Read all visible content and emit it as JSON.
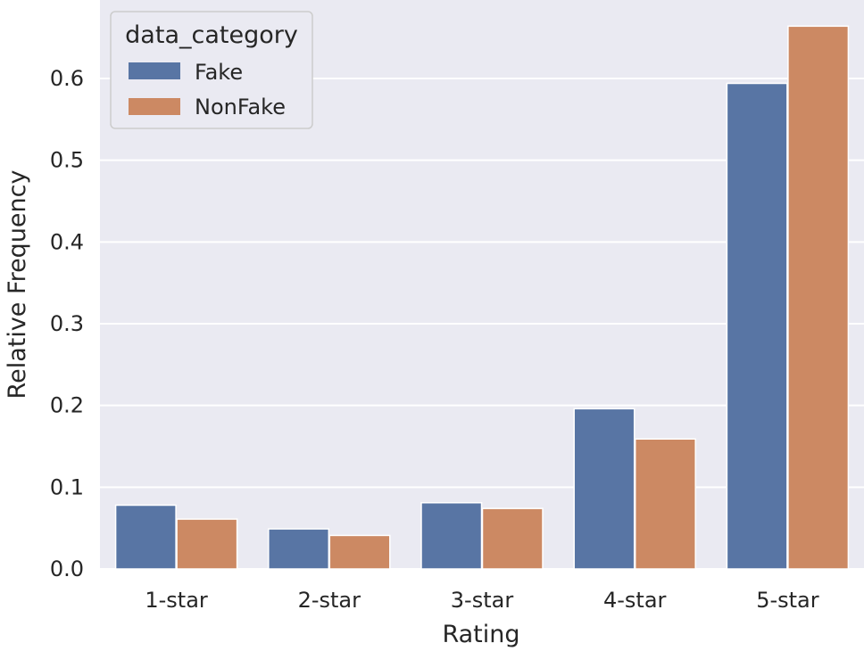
{
  "chart_data": {
    "type": "bar",
    "title": "",
    "xlabel": "Rating",
    "ylabel": "Relative Frequency",
    "categories": [
      "1-star",
      "2-star",
      "3-star",
      "4-star",
      "5-star"
    ],
    "series": [
      {
        "name": "Fake",
        "color": "#5875A4",
        "values": [
          0.078,
          0.049,
          0.081,
          0.196,
          0.594
        ]
      },
      {
        "name": "NonFake",
        "color": "#CC8963",
        "values": [
          0.061,
          0.041,
          0.074,
          0.159,
          0.664
        ]
      }
    ],
    "ylim": [
      0,
      0.7
    ],
    "yticks": [
      "0.0",
      "0.1",
      "0.2",
      "0.3",
      "0.4",
      "0.5",
      "0.6"
    ],
    "ytick_values": [
      0,
      0.1,
      0.2,
      0.3,
      0.4,
      0.5,
      0.6
    ],
    "grid": true,
    "background": "#EAEAF2",
    "legend": {
      "title": "data_category",
      "placement": "upper-left"
    }
  }
}
